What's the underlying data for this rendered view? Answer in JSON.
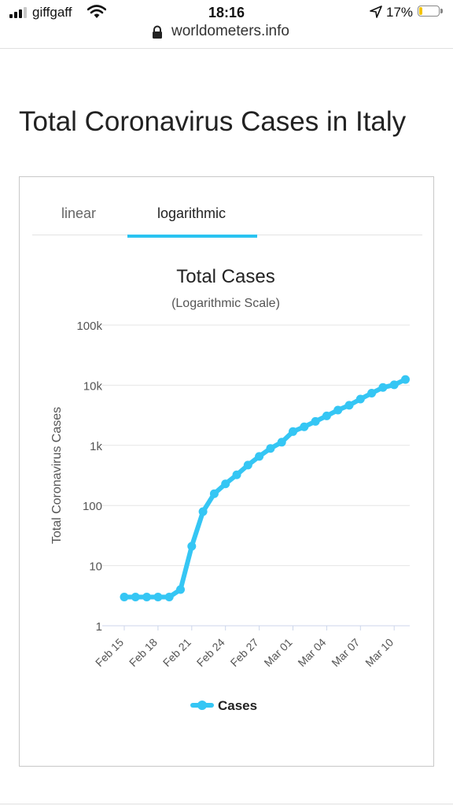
{
  "status_bar": {
    "carrier": "giffgaff",
    "time": "18:16",
    "battery": "17%",
    "battery_level": 0.17,
    "signal_bars": 3,
    "icons": [
      "signal-icon",
      "wifi-icon",
      "location-arrow-icon",
      "battery-icon"
    ]
  },
  "url_bar": {
    "url": "worldometers.info",
    "icon": "lock-icon"
  },
  "page": {
    "title": "Total Coronavirus Cases in Italy"
  },
  "tabs": [
    {
      "label": "linear",
      "active": false
    },
    {
      "label": "logarithmic",
      "active": true
    }
  ],
  "colors": {
    "accent": "#2ac3f1",
    "series": "#35c6f4",
    "text": "#222222",
    "grid": "#e6e6e6"
  },
  "chart_data": {
    "type": "line",
    "title": "Total Cases",
    "subtitle": "(Logarithmic Scale)",
    "ylabel": "Total Coronavirus Cases",
    "xlabel": "",
    "y_scale": "log",
    "ylim": [
      1,
      100000
    ],
    "y_ticks": [
      {
        "value": 1,
        "label": "1"
      },
      {
        "value": 10,
        "label": "10"
      },
      {
        "value": 100,
        "label": "100"
      },
      {
        "value": 1000,
        "label": "1k"
      },
      {
        "value": 10000,
        "label": "10k"
      },
      {
        "value": 100000,
        "label": "100k"
      }
    ],
    "categories": [
      "Feb 15",
      "Feb 16",
      "Feb 17",
      "Feb 18",
      "Feb 19",
      "Feb 20",
      "Feb 21",
      "Feb 22",
      "Feb 23",
      "Feb 24",
      "Feb 25",
      "Feb 26",
      "Feb 27",
      "Feb 28",
      "Feb 29",
      "Mar 01",
      "Mar 02",
      "Mar 03",
      "Mar 04",
      "Mar 05",
      "Mar 06",
      "Mar 07",
      "Mar 08",
      "Mar 09",
      "Mar 10",
      "Mar 11"
    ],
    "x_tick_labels": [
      "Feb 15",
      "Feb 18",
      "Feb 21",
      "Feb 24",
      "Feb 27",
      "Mar 01",
      "Mar 04",
      "Mar 07",
      "Mar 10"
    ],
    "series": [
      {
        "name": "Cases",
        "values": [
          3,
          3,
          3,
          3,
          3,
          4,
          21,
          79,
          157,
          229,
          323,
          470,
          655,
          889,
          1128,
          1694,
          2036,
          2502,
          3089,
          3858,
          4636,
          5883,
          7375,
          9172,
          10149,
          12462
        ]
      }
    ],
    "legend": {
      "position": "bottom",
      "entries": [
        "Cases"
      ]
    },
    "grid": true
  }
}
